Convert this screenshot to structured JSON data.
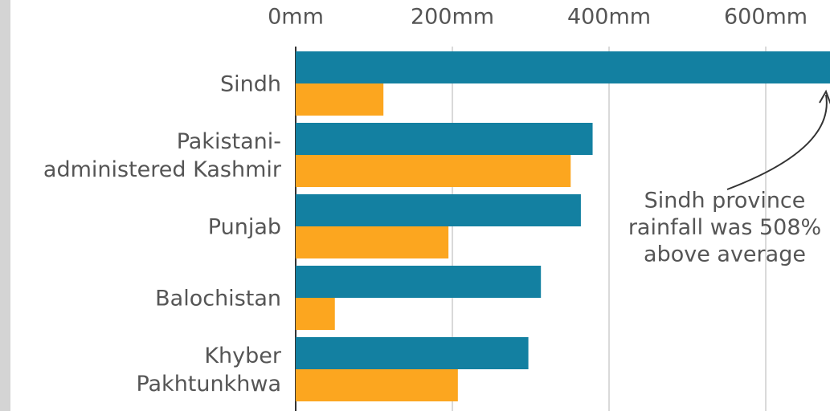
{
  "chart_data": {
    "type": "bar",
    "orientation": "horizontal",
    "categories": [
      [
        "Sindh"
      ],
      [
        "Pakistani-",
        "administered Kashmir"
      ],
      [
        "Punjab"
      ],
      [
        "Balochistan"
      ],
      [
        "Khyber",
        "Pakhtunkhwa"
      ]
    ],
    "series": [
      {
        "color": "#1380a1",
        "values": [
          700,
          379,
          364,
          313,
          297
        ]
      },
      {
        "color": "#fca61f",
        "values": [
          112,
          351,
          195,
          50,
          207
        ]
      }
    ],
    "xlim": [
      0,
      682
    ],
    "xticks": [
      {
        "value": 0,
        "label": "0mm"
      },
      {
        "value": 200,
        "label": "200mm"
      },
      {
        "value": 400,
        "label": "400mm"
      },
      {
        "value": 600,
        "label": "600mm"
      }
    ],
    "grid": true,
    "annotation": [
      "Sindh province",
      "rainfall was 508%",
      "above average"
    ],
    "fragment": "a"
  }
}
